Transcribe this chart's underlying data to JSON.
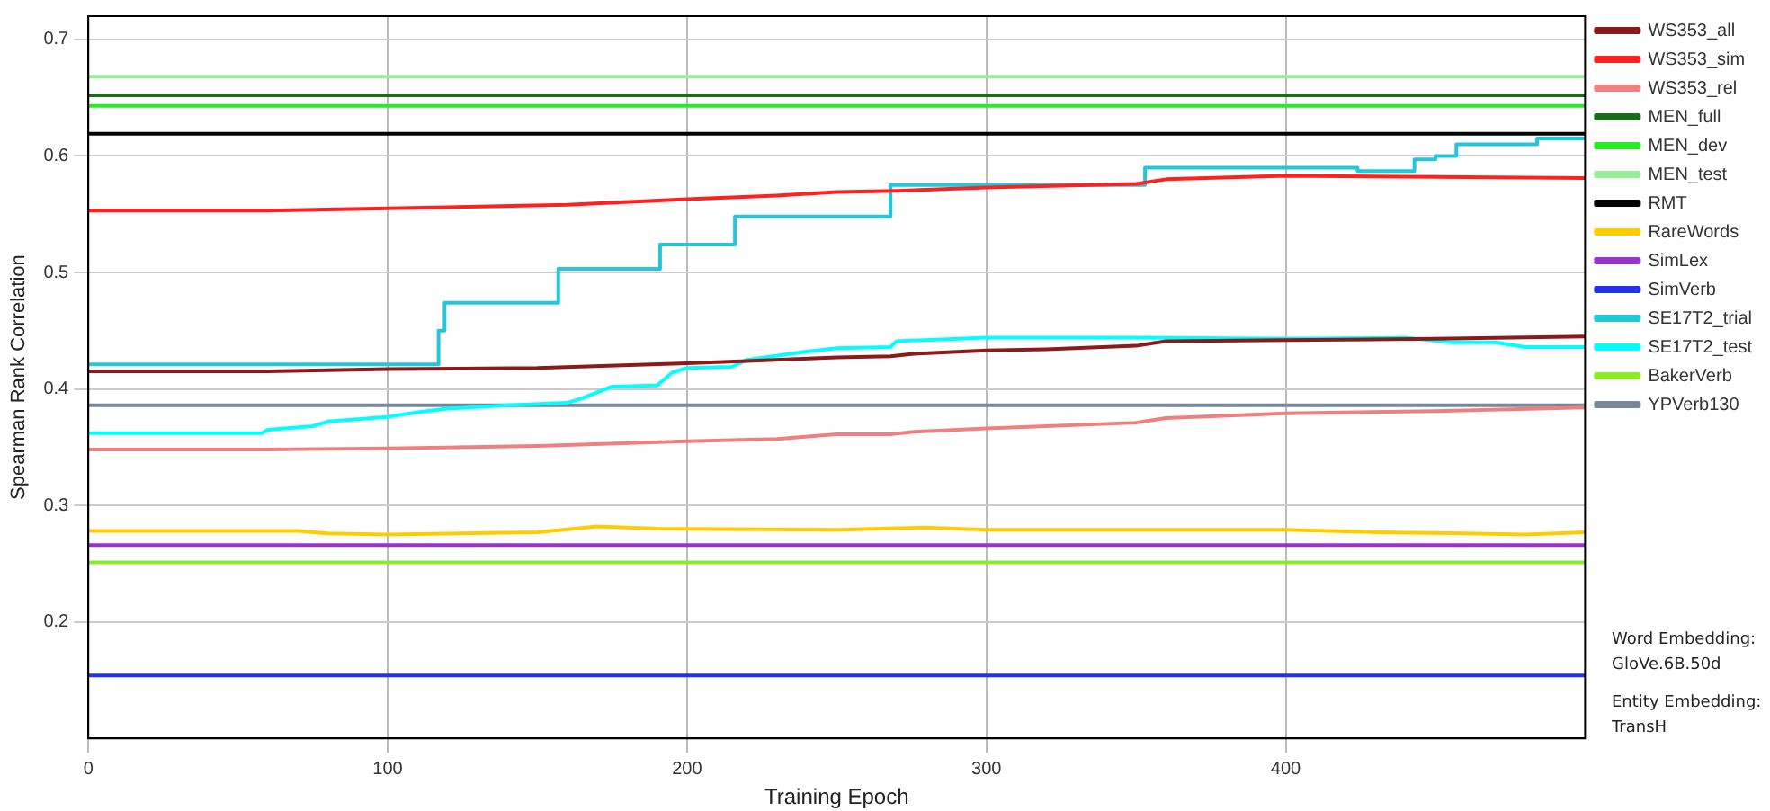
{
  "chart_data": {
    "type": "line",
    "xlabel": "Training Epoch",
    "ylabel": "Spearman Rank Correlation",
    "xlim": [
      0,
      500
    ],
    "xticks": [
      0,
      100,
      200,
      300,
      400
    ],
    "ylim": [
      0.1,
      0.72
    ],
    "yticks": [
      0.2,
      0.3,
      0.4,
      0.5,
      0.6,
      0.7
    ],
    "grid": true,
    "legend": "right",
    "annotations": [
      "Word Embedding:\nGloVe.6B.50d",
      "Entity Embedding:\nTransH"
    ],
    "series": [
      {
        "name": "WS353_all",
        "color": "#8b1a1a",
        "x": [
          0,
          60,
          100,
          150,
          200,
          220,
          250,
          268,
          275,
          300,
          320,
          350,
          360,
          400,
          450,
          500
        ],
        "values": [
          0.415,
          0.415,
          0.417,
          0.418,
          0.422,
          0.424,
          0.427,
          0.428,
          0.43,
          0.433,
          0.434,
          0.437,
          0.441,
          0.442,
          0.443,
          0.445
        ]
      },
      {
        "name": "WS353_sim",
        "color": "#ff2020",
        "x": [
          0,
          60,
          100,
          160,
          200,
          230,
          250,
          270,
          300,
          350,
          360,
          400,
          450,
          500
        ],
        "values": [
          0.553,
          0.553,
          0.555,
          0.558,
          0.563,
          0.566,
          0.569,
          0.57,
          0.573,
          0.576,
          0.58,
          0.583,
          0.582,
          0.581
        ]
      },
      {
        "name": "WS353_rel",
        "color": "#f08080",
        "x": [
          0,
          60,
          100,
          150,
          200,
          230,
          250,
          268,
          275,
          300,
          320,
          350,
          360,
          400,
          450,
          500
        ],
        "values": [
          0.348,
          0.348,
          0.349,
          0.351,
          0.355,
          0.357,
          0.361,
          0.361,
          0.363,
          0.366,
          0.368,
          0.371,
          0.375,
          0.379,
          0.381,
          0.384
        ]
      },
      {
        "name": "MEN_full",
        "color": "#1a6b1a",
        "x": [
          0,
          500
        ],
        "values": [
          0.652,
          0.652
        ]
      },
      {
        "name": "MEN_dev",
        "color": "#22ee22",
        "x": [
          0,
          500
        ],
        "values": [
          0.643,
          0.643
        ]
      },
      {
        "name": "MEN_test",
        "color": "#99ee99",
        "x": [
          0,
          500
        ],
        "values": [
          0.668,
          0.668
        ]
      },
      {
        "name": "RMT",
        "color": "#000000",
        "x": [
          0,
          500
        ],
        "values": [
          0.619,
          0.619
        ]
      },
      {
        "name": "RareWords",
        "color": "#ffcc00",
        "x": [
          0,
          70,
          80,
          100,
          150,
          170,
          190,
          250,
          280,
          300,
          350,
          400,
          430,
          460,
          480,
          500
        ],
        "values": [
          0.278,
          0.278,
          0.276,
          0.275,
          0.277,
          0.282,
          0.28,
          0.279,
          0.281,
          0.279,
          0.279,
          0.279,
          0.277,
          0.276,
          0.275,
          0.277
        ]
      },
      {
        "name": "SimLex",
        "color": "#9933cc",
        "x": [
          0,
          500
        ],
        "values": [
          0.266,
          0.266
        ]
      },
      {
        "name": "SimVerb",
        "color": "#2233ee",
        "x": [
          0,
          500
        ],
        "values": [
          0.154,
          0.154
        ]
      },
      {
        "name": "SE17T2_trial",
        "color": "#22c8d8",
        "type": "step",
        "x": [
          0,
          117,
          119,
          157,
          191,
          216,
          268,
          353,
          424,
          443,
          450,
          457,
          484,
          500
        ],
        "values": [
          0.421,
          0.45,
          0.474,
          0.503,
          0.524,
          0.548,
          0.575,
          0.59,
          0.587,
          0.597,
          0.6,
          0.61,
          0.615,
          0.615
        ]
      },
      {
        "name": "SE17T2_test",
        "color": "#00ffff",
        "x": [
          0,
          58,
          60,
          75,
          80,
          100,
          110,
          120,
          140,
          160,
          165,
          170,
          175,
          190,
          195,
          200,
          215,
          220,
          240,
          250,
          268,
          270,
          300,
          350,
          400,
          440,
          455,
          470,
          480,
          500
        ],
        "values": [
          0.362,
          0.362,
          0.365,
          0.368,
          0.372,
          0.376,
          0.38,
          0.383,
          0.386,
          0.388,
          0.392,
          0.397,
          0.402,
          0.403,
          0.414,
          0.418,
          0.419,
          0.425,
          0.432,
          0.435,
          0.436,
          0.441,
          0.444,
          0.444,
          0.443,
          0.444,
          0.44,
          0.44,
          0.436,
          0.436
        ]
      },
      {
        "name": "BakerVerb",
        "color": "#88ee22",
        "x": [
          0,
          500
        ],
        "values": [
          0.251,
          0.251
        ]
      },
      {
        "name": "YPVerb130",
        "color": "#778899",
        "x": [
          0,
          500
        ],
        "values": [
          0.386,
          0.386
        ]
      }
    ]
  }
}
